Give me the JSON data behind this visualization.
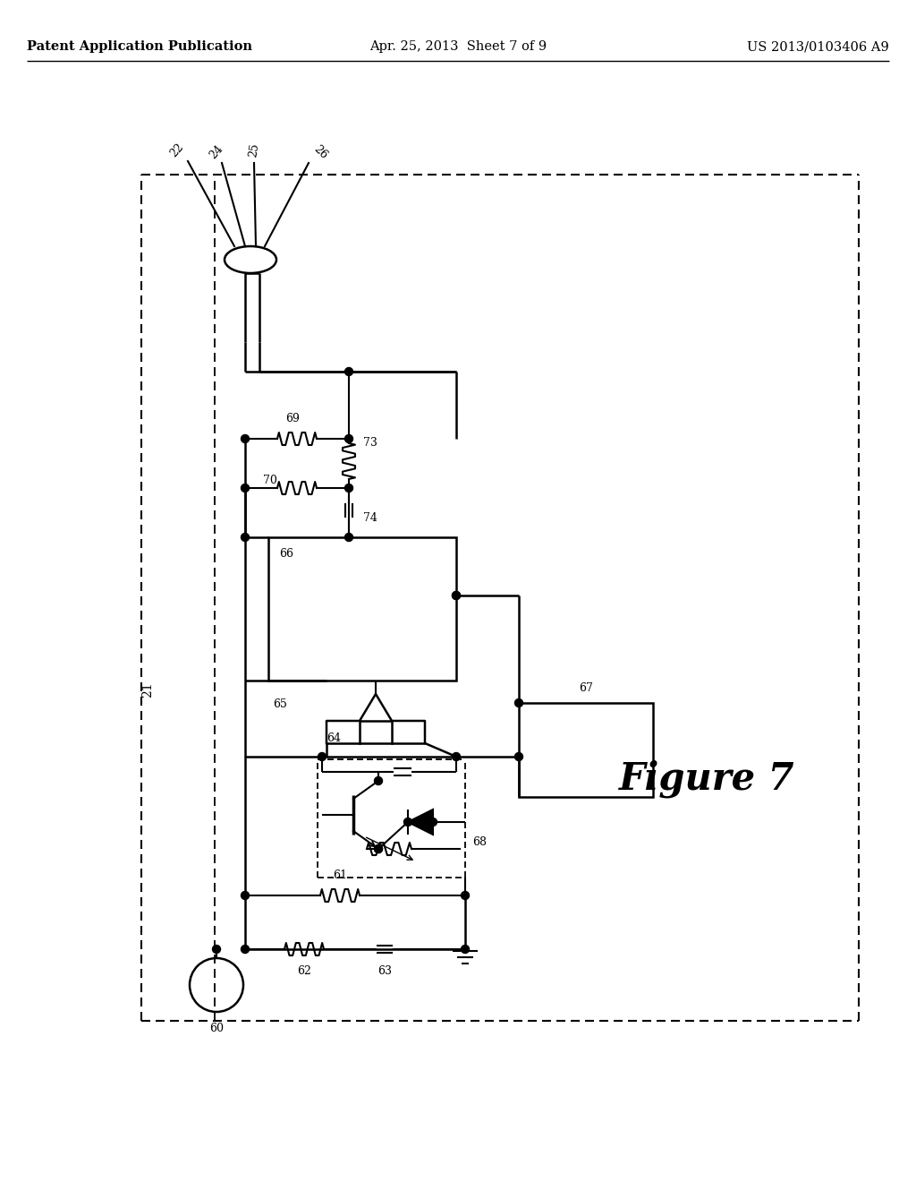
{
  "bg_color": "#ffffff",
  "line_color": "#000000",
  "header_left": "Patent Application Publication",
  "header_center": "Apr. 25, 2013  Sheet 7 of 9",
  "header_right": "US 2013/0103406 A9",
  "title_font_size": 10.5,
  "figure_label_font_size": 30,
  "fig_w": 1024,
  "fig_h": 1320
}
